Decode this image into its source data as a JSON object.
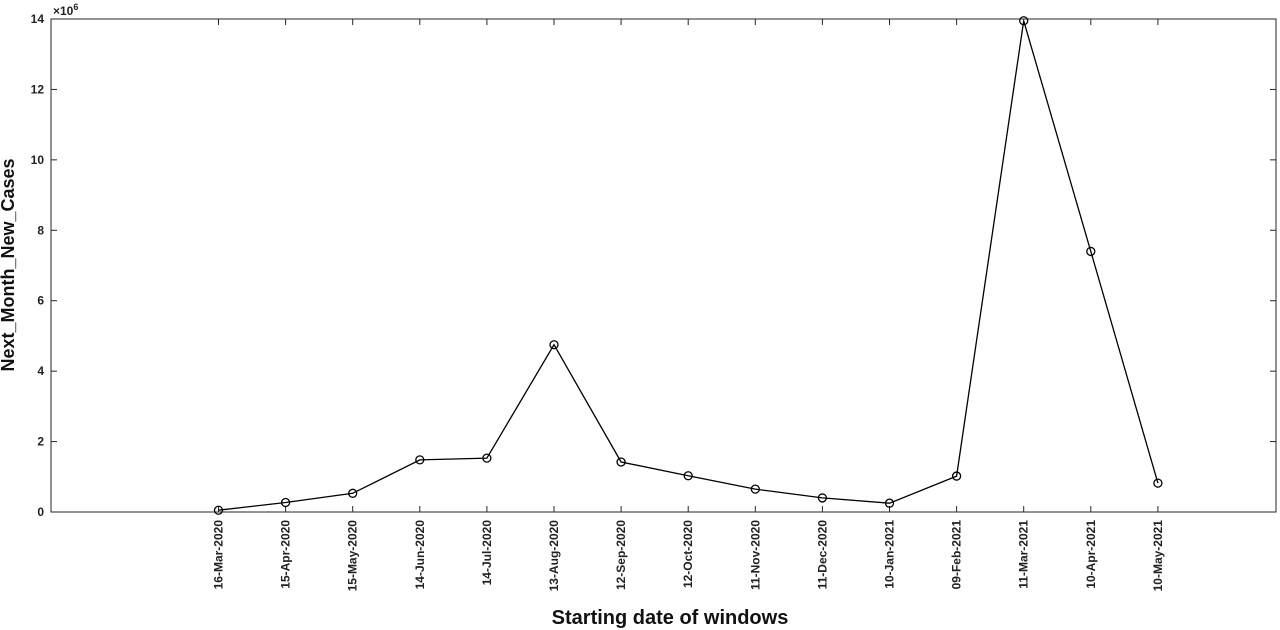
{
  "chart_data": {
    "type": "line",
    "x": [
      "16-Mar-2020",
      "15-Apr-2020",
      "15-May-2020",
      "14-Jun-2020",
      "14-Jul-2020",
      "13-Aug-2020",
      "12-Sep-2020",
      "12-Oct-2020",
      "11-Nov-2020",
      "11-Dec-2020",
      "10-Jan-2021",
      "09-Feb-2021",
      "11-Mar-2021",
      "10-Apr-2021",
      "10-May-2021"
    ],
    "series": [
      {
        "values": [
          50000,
          270000,
          530000,
          1480000,
          1530000,
          4750000,
          1420000,
          1030000,
          650000,
          400000,
          250000,
          1020000,
          13950000,
          7400000,
          820000
        ]
      }
    ],
    "xlabel": "Starting date of windows",
    "ylabel": "Next_Month_New_Cases",
    "ylim": [
      0,
      14000000
    ],
    "yticks": [
      0,
      2,
      4,
      6,
      8,
      10,
      12,
      14
    ],
    "y_multiplier_label": "×10",
    "y_multiplier_exponent": "6",
    "grid": false,
    "colors": {
      "line": "#000000",
      "axes": "#262626"
    }
  }
}
